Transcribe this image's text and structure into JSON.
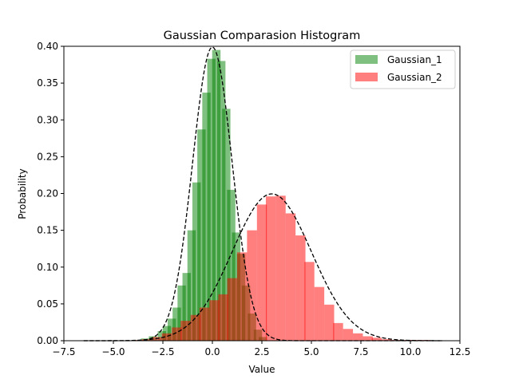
{
  "chart_data": {
    "type": "bar",
    "title": "Gaussian Comparasion Histogram",
    "xlabel": "Value",
    "ylabel": "Probability",
    "xlim": [
      -7.5,
      12.5
    ],
    "ylim": [
      0.0,
      0.4
    ],
    "x_ticks": [
      -7.5,
      -5.0,
      -2.5,
      0.0,
      2.5,
      5.0,
      7.5,
      10.0,
      12.5
    ],
    "x_tick_labels": [
      "−7.5",
      "−5.0",
      "−2.5",
      "0.0",
      "2.5",
      "5.0",
      "7.5",
      "10.0",
      "12.5"
    ],
    "y_ticks": [
      0.0,
      0.05,
      0.1,
      0.15,
      0.2,
      0.25,
      0.3,
      0.35,
      0.4
    ],
    "y_tick_labels": [
      "0.00",
      "0.05",
      "0.10",
      "0.15",
      "0.20",
      "0.25",
      "0.30",
      "0.35",
      "0.40"
    ],
    "grid": false,
    "legend_position": "top-right",
    "series": [
      {
        "name": "Gaussian_1",
        "color": "#008000",
        "bar_width": 0.42,
        "x": [
          -3.85,
          -3.4,
          -3.0,
          -2.55,
          -2.3,
          -2.05,
          -1.8,
          -1.55,
          -1.3,
          -1.05,
          -0.8,
          -0.55,
          -0.3,
          -0.05,
          0.2,
          0.45,
          0.7,
          0.95,
          1.2,
          1.45,
          1.7,
          2.0,
          2.3,
          2.55
        ],
        "values": [
          0.001,
          0.003,
          0.006,
          0.013,
          0.02,
          0.03,
          0.045,
          0.075,
          0.092,
          0.15,
          0.215,
          0.287,
          0.337,
          0.383,
          0.395,
          0.38,
          0.315,
          0.205,
          0.147,
          0.118,
          0.075,
          0.037,
          0.015,
          0.005
        ],
        "curve": {
          "mean": 0.0,
          "std": 1.0
        }
      },
      {
        "name": "Gaussian_2",
        "color": "#ff0000",
        "bar_width": 0.5,
        "x": [
          -3.7,
          -3.3,
          -2.8,
          -2.3,
          -1.8,
          -1.35,
          -0.85,
          -0.4,
          0.1,
          0.55,
          1.0,
          1.5,
          2.0,
          2.5,
          2.95,
          3.45,
          3.95,
          4.45,
          4.9,
          5.4,
          5.9,
          6.35,
          6.85,
          7.35,
          7.85,
          8.3,
          8.8,
          9.3,
          9.8,
          10.25,
          10.75
        ],
        "values": [
          0.001,
          0.002,
          0.005,
          0.01,
          0.018,
          0.027,
          0.035,
          0.045,
          0.055,
          0.063,
          0.085,
          0.12,
          0.15,
          0.185,
          0.196,
          0.197,
          0.173,
          0.143,
          0.107,
          0.073,
          0.049,
          0.024,
          0.016,
          0.01,
          0.006,
          0.004,
          0.002,
          0.001,
          0.001,
          0.001,
          0.001
        ],
        "curve": {
          "mean": 3.0,
          "std": 2.0
        }
      }
    ],
    "curve_x_range": [
      -6.5,
      11.6
    ],
    "curve_style": "dashed",
    "curve_color": "#000000"
  }
}
